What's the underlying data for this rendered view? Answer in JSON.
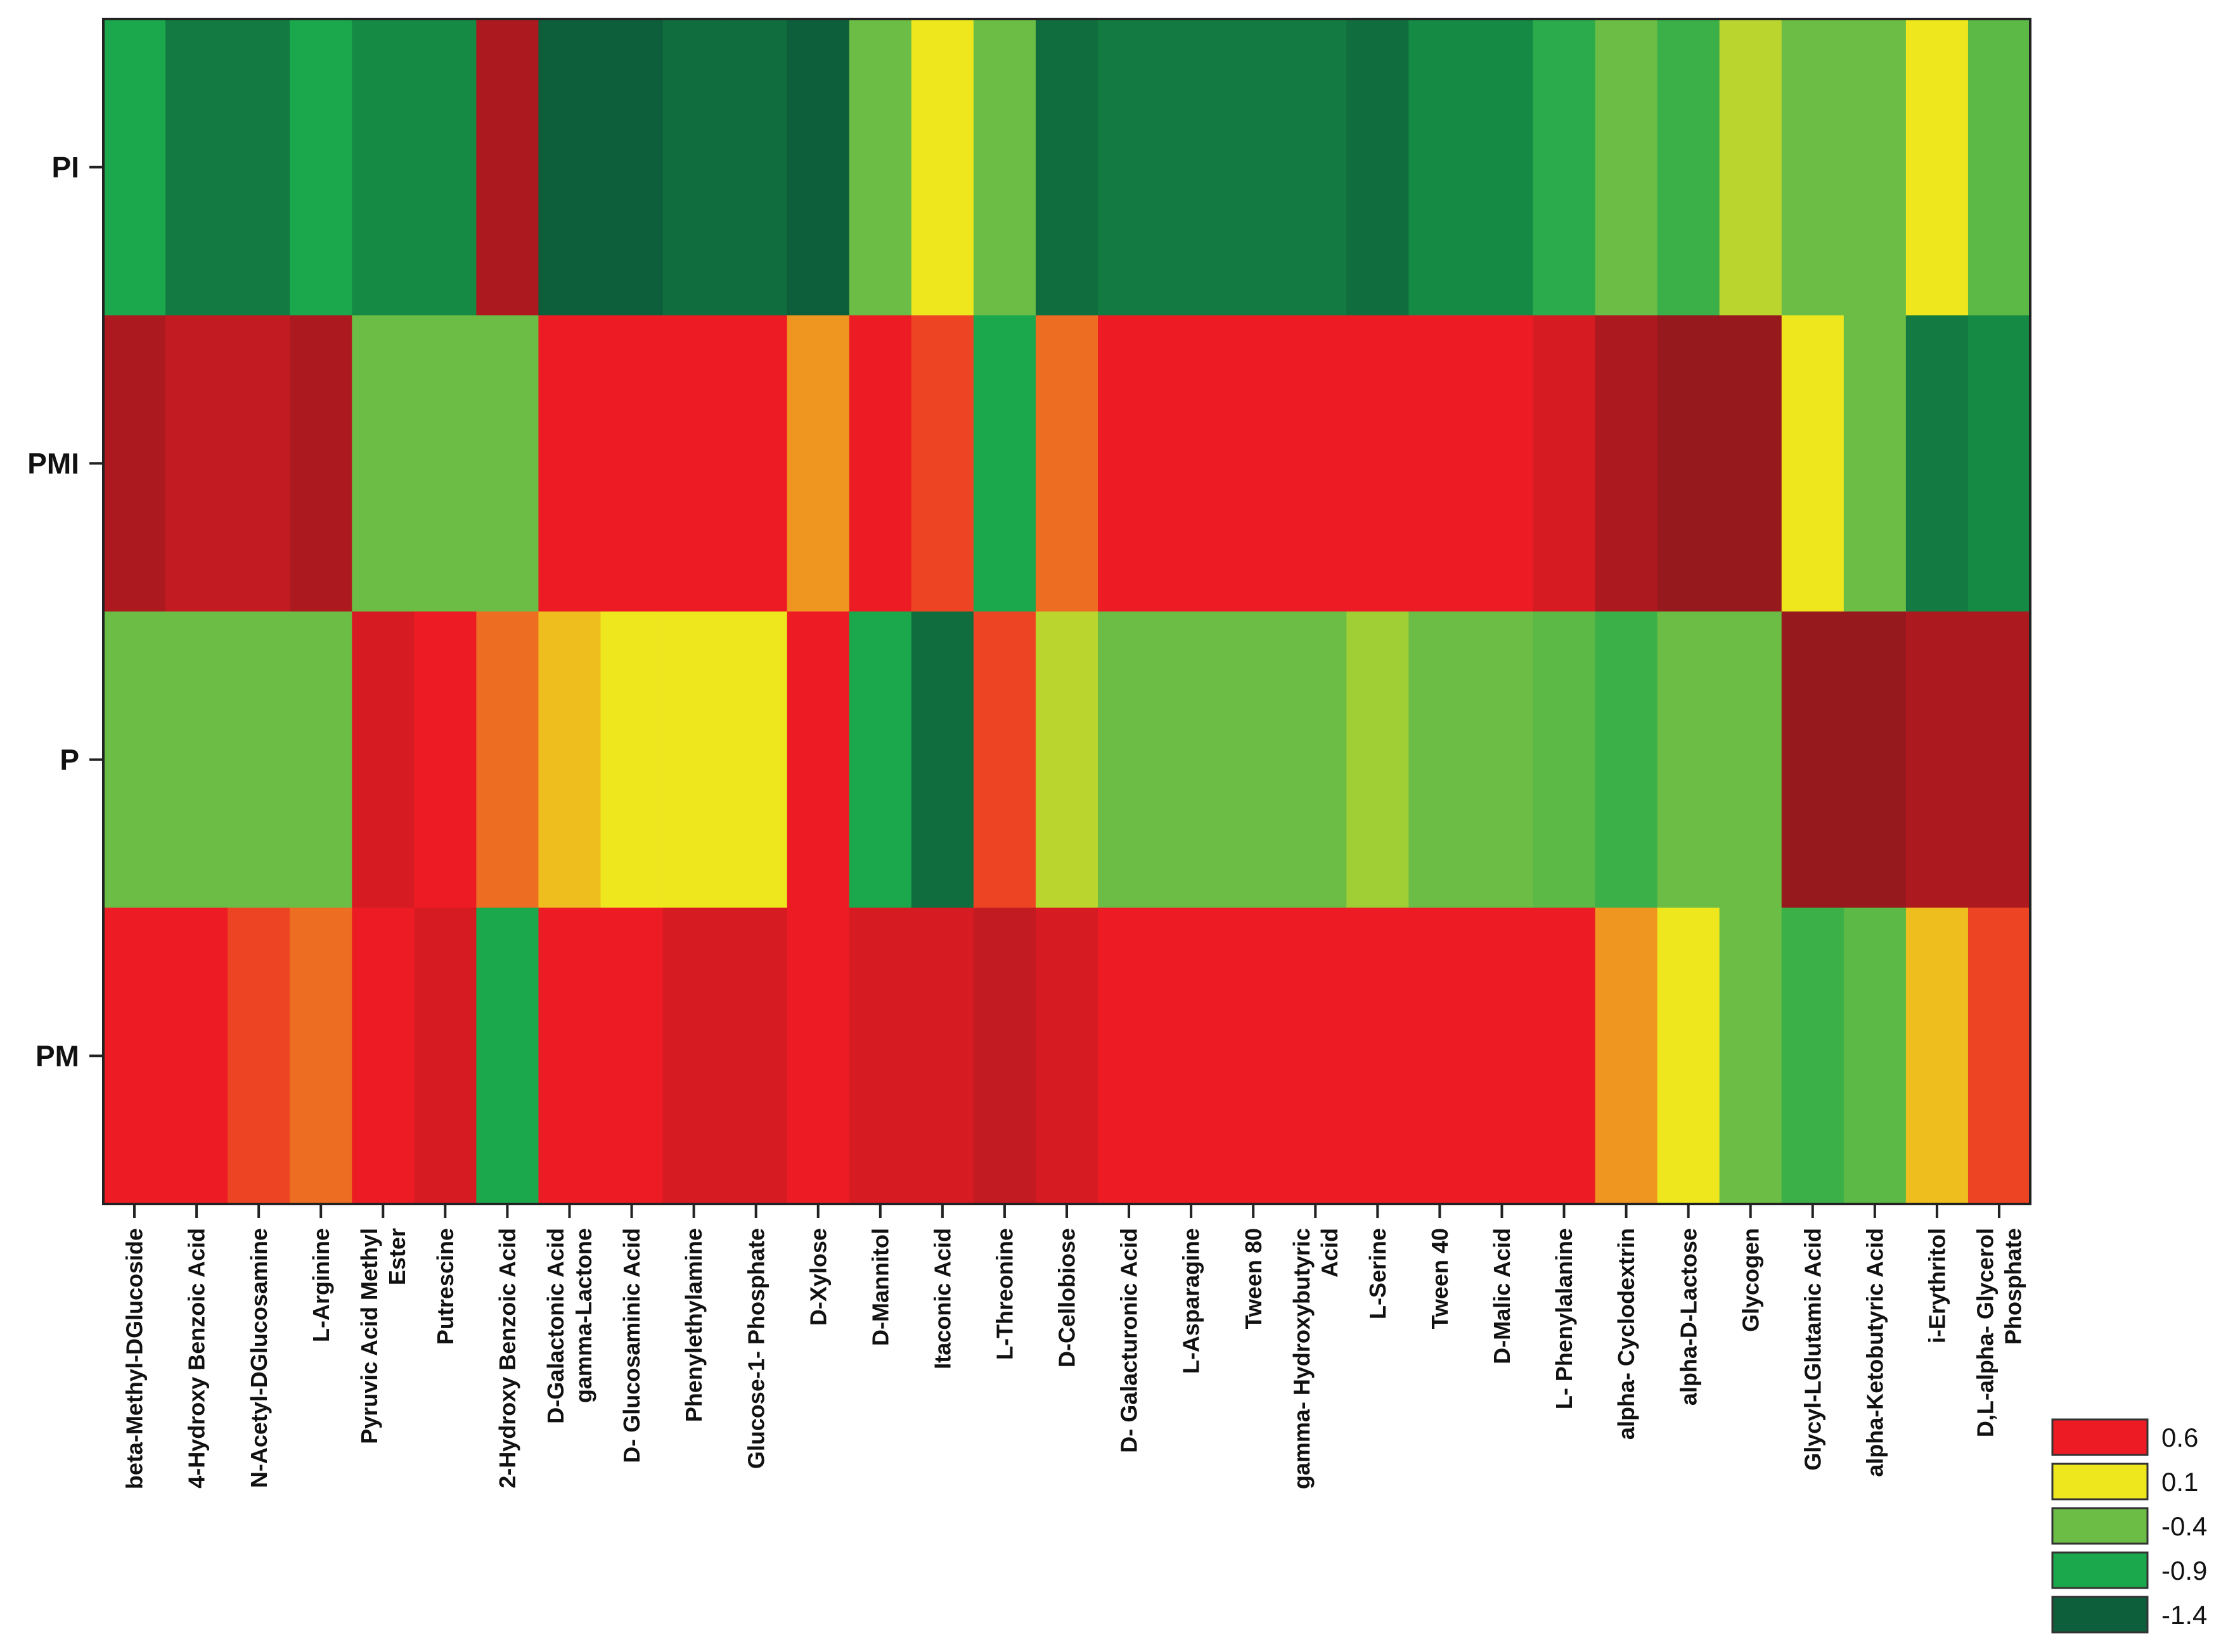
{
  "chart_data": {
    "type": "heatmap",
    "title": "",
    "xlabel": "",
    "ylabel": "",
    "rows": [
      "PI",
      "PMI",
      "P",
      "PM"
    ],
    "columns": [
      "beta-Methyl-DGlucoside",
      "4-Hydroxy Benzoic Acid",
      "N-Acetyl-DGlucosamine",
      "L-Arginine",
      "Pyruvic Acid Methyl Ester",
      "Putrescine",
      "2-Hydroxy Benzoic Acid",
      "D-Galactonic Acid gamma-Lactone",
      "D- Glucosaminic Acid",
      "Phenylethylamine",
      "Glucose-1- Phosphate",
      "D-Xylose",
      "D-Mannitol",
      "Itaconic Acid",
      "L-Threonine",
      "D-Cellobiose",
      "D- Galacturonic Acid",
      "L-Asparagine",
      "Tween 80",
      "gamma- Hydroxybutyric Acid",
      "L-Serine",
      "Tween 40",
      "D-Malic Acid",
      "L- Phenylalanine",
      "alpha- Cyclodextrin",
      "alpha-D-Lactose",
      "Glycogen",
      "Glycyl-LGlutamic Acid",
      "alpha-Ketobutyric Acid",
      "i-Erythritol",
      "D,L-alpha- Glycerol Phosphate"
    ],
    "values": [
      [
        -0.9,
        -1.2,
        -1.2,
        -0.9,
        -1.1,
        -1.1,
        0.9,
        -1.4,
        -1.4,
        -1.3,
        -1.3,
        -1.4,
        -0.4,
        0.1,
        -0.4,
        -1.3,
        -1.2,
        -1.2,
        -1.2,
        -1.2,
        -1.3,
        -1.1,
        -1.1,
        -0.8,
        -0.4,
        -0.7,
        -0.1,
        -0.4,
        -0.4,
        0.1,
        -0.5
      ],
      [
        0.9,
        0.8,
        0.8,
        0.9,
        -0.4,
        -0.4,
        -0.4,
        0.6,
        0.6,
        0.6,
        0.6,
        0.3,
        0.6,
        0.5,
        -0.9,
        0.4,
        0.6,
        0.6,
        0.6,
        0.6,
        0.6,
        0.6,
        0.6,
        0.7,
        0.9,
        1.0,
        1.0,
        0.1,
        -0.4,
        -1.2,
        -1.1
      ],
      [
        -0.4,
        -0.4,
        -0.4,
        -0.4,
        0.7,
        0.6,
        0.4,
        0.2,
        0.1,
        0.1,
        0.1,
        0.6,
        -0.9,
        -1.3,
        0.5,
        -0.1,
        -0.4,
        -0.4,
        -0.4,
        -0.4,
        -0.2,
        -0.4,
        -0.4,
        -0.5,
        -0.7,
        -0.4,
        -0.4,
        1.0,
        1.0,
        0.9,
        0.9
      ],
      [
        0.6,
        0.6,
        0.5,
        0.4,
        0.6,
        0.7,
        -0.9,
        0.6,
        0.6,
        0.7,
        0.7,
        0.6,
        0.7,
        0.7,
        0.8,
        0.7,
        0.6,
        0.6,
        0.6,
        0.6,
        0.6,
        0.6,
        0.6,
        0.6,
        0.3,
        0.1,
        -0.4,
        -0.7,
        -0.5,
        0.2,
        0.5
      ]
    ],
    "legend": {
      "placement": "bottom-right",
      "entries": [
        {
          "label": "0.6",
          "color": "#ED1C24"
        },
        {
          "label": "0.1",
          "color": "#EEE71E"
        },
        {
          "label": "-0.4",
          "color": "#6CBD45"
        },
        {
          "label": "-0.9",
          "color": "#1BA74C"
        },
        {
          "label": "-1.4",
          "color": "#0D5E3A"
        }
      ]
    },
    "colorscale": [
      {
        "value": -1.4,
        "color": "#0D5E3A"
      },
      {
        "value": -0.9,
        "color": "#1BA74C"
      },
      {
        "value": -0.4,
        "color": "#6CBD45"
      },
      {
        "value": 0.1,
        "color": "#EEE71E"
      },
      {
        "value": 0.6,
        "color": "#ED1C24"
      },
      {
        "value": 1.0,
        "color": "#96191D"
      }
    ]
  }
}
